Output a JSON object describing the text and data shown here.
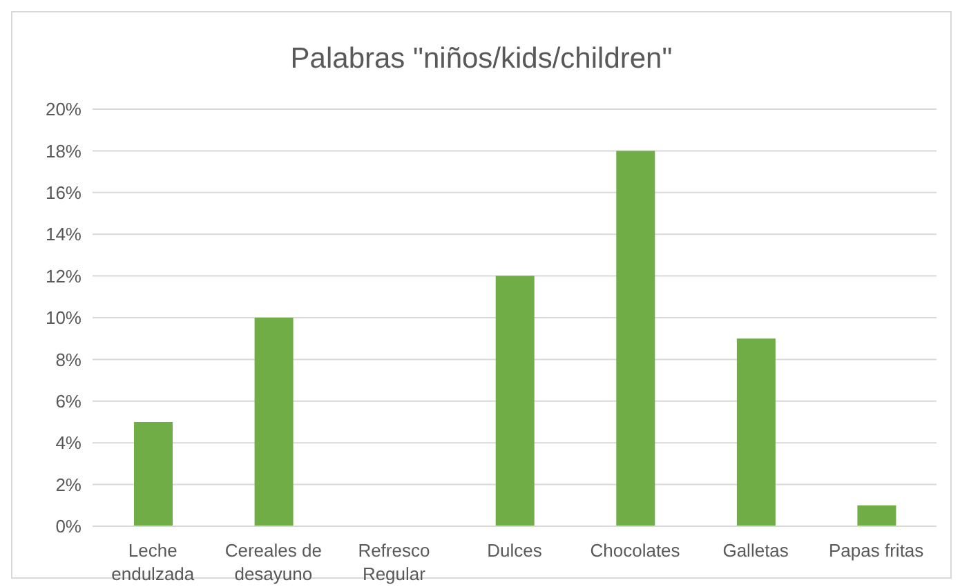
{
  "chart_data": {
    "type": "bar",
    "title": "Palabras \"niños/kids/children\"",
    "categories": [
      "Leche endulzada",
      "Cereales de desayuno",
      "Refresco Regular",
      "Dulces",
      "Chocolates",
      "Galletas",
      "Papas fritas"
    ],
    "values": [
      5,
      10,
      0,
      12,
      18,
      9,
      1
    ],
    "color": "#70ad47",
    "ylim": [
      0,
      20
    ],
    "yticks": [
      {
        "value": 0,
        "label": "0%"
      },
      {
        "value": 2,
        "label": "2%"
      },
      {
        "value": 4,
        "label": "4%"
      },
      {
        "value": 6,
        "label": "6%"
      },
      {
        "value": 8,
        "label": "8%"
      },
      {
        "value": 10,
        "label": "10%"
      },
      {
        "value": 12,
        "label": "12%"
      },
      {
        "value": 14,
        "label": "14%"
      },
      {
        "value": 16,
        "label": "16%"
      },
      {
        "value": 18,
        "label": "18%"
      },
      {
        "value": 20,
        "label": "20%"
      }
    ],
    "grid": "y",
    "legend": false
  }
}
